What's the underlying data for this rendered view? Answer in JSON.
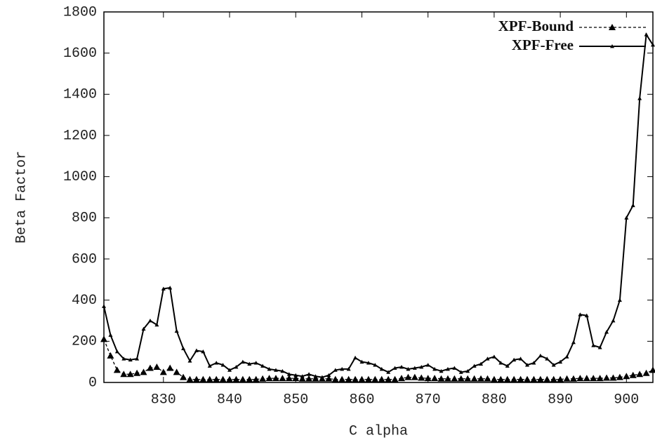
{
  "chart_data": {
    "type": "line",
    "xlabel": "C alpha",
    "ylabel": "Beta Factor",
    "x": [
      821,
      822,
      823,
      824,
      825,
      826,
      827,
      828,
      829,
      830,
      831,
      832,
      833,
      834,
      835,
      836,
      837,
      838,
      839,
      840,
      841,
      842,
      843,
      844,
      845,
      846,
      847,
      848,
      849,
      850,
      851,
      852,
      853,
      854,
      855,
      856,
      857,
      858,
      859,
      860,
      861,
      862,
      863,
      864,
      865,
      866,
      867,
      868,
      869,
      870,
      871,
      872,
      873,
      874,
      875,
      876,
      877,
      878,
      879,
      880,
      881,
      882,
      883,
      884,
      885,
      886,
      887,
      888,
      889,
      890,
      891,
      892,
      893,
      894,
      895,
      896,
      897,
      898,
      899,
      900,
      901,
      902,
      903,
      904
    ],
    "series": [
      {
        "name": "XPF-Bound",
        "color": "#000000",
        "dash": true,
        "values": [
          210,
          130,
          60,
          40,
          40,
          45,
          50,
          70,
          75,
          50,
          70,
          50,
          25,
          15,
          15,
          15,
          15,
          15,
          15,
          15,
          15,
          15,
          15,
          15,
          18,
          20,
          20,
          20,
          20,
          20,
          18,
          18,
          18,
          18,
          18,
          15,
          15,
          15,
          15,
          15,
          15,
          15,
          15,
          15,
          15,
          20,
          25,
          25,
          22,
          20,
          20,
          18,
          18,
          18,
          18,
          18,
          18,
          18,
          18,
          15,
          15,
          15,
          15,
          15,
          15,
          15,
          15,
          15,
          15,
          15,
          18,
          18,
          20,
          20,
          20,
          20,
          22,
          22,
          25,
          30,
          35,
          40,
          45,
          60
        ]
      },
      {
        "name": "XPF-Free",
        "color": "#000000",
        "dash": false,
        "values": [
          370,
          230,
          150,
          115,
          110,
          115,
          260,
          300,
          280,
          455,
          460,
          250,
          165,
          105,
          155,
          150,
          80,
          95,
          85,
          60,
          75,
          100,
          90,
          95,
          80,
          65,
          60,
          55,
          40,
          35,
          30,
          40,
          30,
          25,
          35,
          60,
          65,
          65,
          120,
          100,
          95,
          85,
          65,
          50,
          70,
          75,
          65,
          70,
          75,
          85,
          65,
          55,
          65,
          70,
          50,
          55,
          80,
          90,
          115,
          125,
          95,
          80,
          110,
          115,
          85,
          95,
          130,
          115,
          85,
          100,
          125,
          195,
          330,
          325,
          180,
          170,
          245,
          300,
          400,
          800,
          860,
          1380,
          1690,
          1640
        ]
      }
    ],
    "xlim": [
      821,
      904
    ],
    "ylim": [
      0,
      1800
    ],
    "xticks": [
      830,
      840,
      850,
      860,
      870,
      880,
      890,
      900
    ],
    "yticks": [
      0,
      200,
      400,
      600,
      800,
      1000,
      1200,
      1400,
      1600,
      1800
    ],
    "legend": "upper right"
  }
}
